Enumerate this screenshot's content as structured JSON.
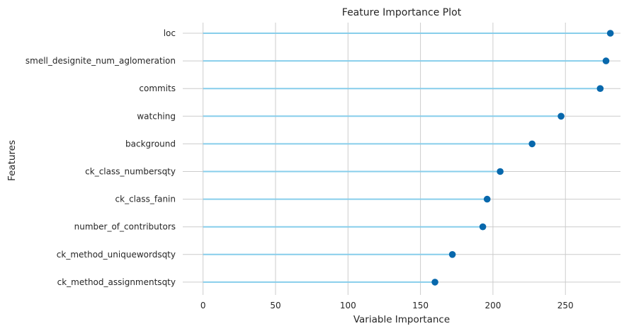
{
  "chart_data": {
    "type": "lollipop",
    "title": "Feature Importance Plot",
    "xlabel": "Variable Importance",
    "ylabel": "Features",
    "xlim": [
      -14,
      288
    ],
    "xticks": [
      0,
      50,
      100,
      150,
      200,
      250
    ],
    "grid": true,
    "categories": [
      "loc",
      "smell_designite_num_aglomeration",
      "commits",
      "watching",
      "background",
      "ck_class_numbersqty",
      "ck_class_fanin",
      "number_of_contributors",
      "ck_method_uniquewordsqty",
      "ck_method_assignmentsqty"
    ],
    "values": [
      281,
      278,
      274,
      247,
      227,
      205,
      196,
      193,
      172,
      160
    ],
    "colors": {
      "stem": "#87ceeb",
      "marker": "#0868ac",
      "grid": "#cccccc",
      "background": "#ffffff"
    }
  }
}
